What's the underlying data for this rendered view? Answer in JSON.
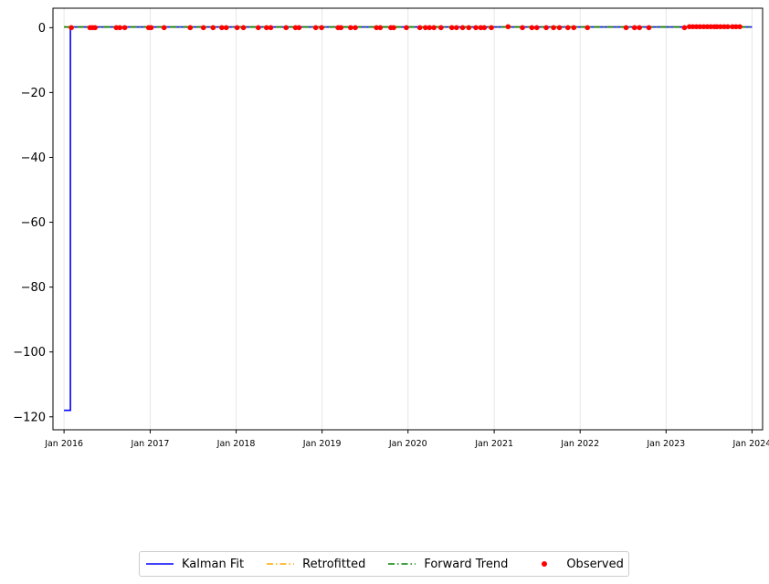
{
  "chart_data": {
    "type": "line",
    "title": "",
    "xlabel": "",
    "ylabel": "",
    "xlim": [
      "2015-11-15",
      "2024-02-15"
    ],
    "ylim": [
      -124,
      6
    ],
    "grid": "vertical only",
    "y_ticks": [
      0,
      -20,
      -40,
      -60,
      -80,
      -100,
      -120
    ],
    "y_tick_labels": [
      "0",
      "−20",
      "−40",
      "−60",
      "−80",
      "−100",
      "−120"
    ],
    "x_ticks": [
      "2016-01-01",
      "2017-01-01",
      "2018-01-01",
      "2019-01-01",
      "2020-01-01",
      "2021-01-01",
      "2022-01-01",
      "2023-01-01",
      "2024-01-01"
    ],
    "x_tick_labels": [
      "Jan 2016",
      "Jan 2017",
      "Jan 2018",
      "Jan 2019",
      "Jan 2020",
      "Jan 2021",
      "Jan 2022",
      "Jan 2023",
      "Jan 2024"
    ],
    "legend_position": "bottom-center, below chart",
    "series": [
      {
        "name": "Kalman Fit",
        "style": "solid",
        "color": "#0000ff",
        "points": [
          [
            "2016-01-01",
            -118
          ],
          [
            "2016-01-28",
            -118
          ],
          [
            "2016-01-28",
            0.2
          ],
          [
            "2024-01-01",
            0.2
          ]
        ]
      },
      {
        "name": "Retrofitted",
        "style": "dashdot",
        "color": "#ffa500",
        "points": [
          [
            "2016-01-01",
            0.2
          ],
          [
            "2024-01-01",
            0.2
          ]
        ]
      },
      {
        "name": "Forward Trend",
        "style": "dashdot",
        "color": "#008000",
        "points": [
          [
            "2016-01-01",
            0.2
          ],
          [
            "2024-01-01",
            0.2
          ]
        ]
      },
      {
        "name": "Observed",
        "style": "scatter",
        "color": "#ff0000",
        "points": [
          [
            "2016-02-01",
            0
          ],
          [
            "2016-04-20",
            0
          ],
          [
            "2016-05-01",
            0
          ],
          [
            "2016-05-12",
            0
          ],
          [
            "2016-08-10",
            0
          ],
          [
            "2016-08-25",
            0
          ],
          [
            "2016-09-15",
            0
          ],
          [
            "2016-12-25",
            0
          ],
          [
            "2017-01-05",
            0
          ],
          [
            "2017-03-01",
            0
          ],
          [
            "2017-06-20",
            0
          ],
          [
            "2017-08-15",
            0
          ],
          [
            "2017-09-25",
            0
          ],
          [
            "2017-11-01",
            0
          ],
          [
            "2017-11-20",
            0
          ],
          [
            "2018-01-05",
            0
          ],
          [
            "2018-02-01",
            0
          ],
          [
            "2018-04-05",
            0
          ],
          [
            "2018-05-10",
            0
          ],
          [
            "2018-05-28",
            0
          ],
          [
            "2018-08-01",
            0
          ],
          [
            "2018-09-10",
            0
          ],
          [
            "2018-09-25",
            0
          ],
          [
            "2018-12-05",
            0
          ],
          [
            "2018-12-30",
            0
          ],
          [
            "2019-03-10",
            0
          ],
          [
            "2019-03-22",
            0
          ],
          [
            "2019-05-02",
            0
          ],
          [
            "2019-05-22",
            0
          ],
          [
            "2019-08-20",
            0
          ],
          [
            "2019-09-05",
            0
          ],
          [
            "2019-10-20",
            0
          ],
          [
            "2019-11-01",
            0
          ],
          [
            "2019-12-25",
            0
          ],
          [
            "2020-02-20",
            0
          ],
          [
            "2020-03-15",
            0
          ],
          [
            "2020-04-01",
            0
          ],
          [
            "2020-04-20",
            0
          ],
          [
            "2020-05-20",
            0
          ],
          [
            "2020-07-05",
            0
          ],
          [
            "2020-07-25",
            0
          ],
          [
            "2020-08-20",
            0
          ],
          [
            "2020-09-15",
            0
          ],
          [
            "2020-10-15",
            0
          ],
          [
            "2020-11-05",
            0
          ],
          [
            "2020-11-20",
            0
          ],
          [
            "2020-12-20",
            0
          ],
          [
            "2021-03-01",
            0.3
          ],
          [
            "2021-05-01",
            0
          ],
          [
            "2021-06-10",
            0
          ],
          [
            "2021-07-01",
            0
          ],
          [
            "2021-08-10",
            0
          ],
          [
            "2021-09-10",
            0
          ],
          [
            "2021-10-05",
            0
          ],
          [
            "2021-11-10",
            0
          ],
          [
            "2021-12-05",
            0
          ],
          [
            "2022-02-01",
            0
          ],
          [
            "2022-07-15",
            0
          ],
          [
            "2022-08-20",
            0
          ],
          [
            "2022-09-10",
            0
          ],
          [
            "2022-10-20",
            0
          ],
          [
            "2023-03-20",
            0
          ],
          [
            "2023-04-10",
            0.3
          ],
          [
            "2023-04-25",
            0.3
          ],
          [
            "2023-05-10",
            0.3
          ],
          [
            "2023-05-25",
            0.3
          ],
          [
            "2023-06-10",
            0.3
          ],
          [
            "2023-06-25",
            0.3
          ],
          [
            "2023-07-10",
            0.3
          ],
          [
            "2023-07-25",
            0.3
          ],
          [
            "2023-08-05",
            0.3
          ],
          [
            "2023-08-20",
            0.3
          ],
          [
            "2023-09-05",
            0.3
          ],
          [
            "2023-09-20",
            0.3
          ],
          [
            "2023-10-10",
            0.3
          ],
          [
            "2023-10-25",
            0.3
          ],
          [
            "2023-11-10",
            0.3
          ]
        ]
      }
    ]
  },
  "legend": {
    "items": [
      {
        "label": "Kalman Fit",
        "color": "#0000ff",
        "style": "solid"
      },
      {
        "label": "Retrofitted",
        "color": "#ffa500",
        "style": "dashdot"
      },
      {
        "label": "Forward Trend",
        "color": "#008000",
        "style": "dashdot"
      },
      {
        "label": "Observed",
        "color": "#ff0000",
        "style": "marker"
      }
    ]
  }
}
